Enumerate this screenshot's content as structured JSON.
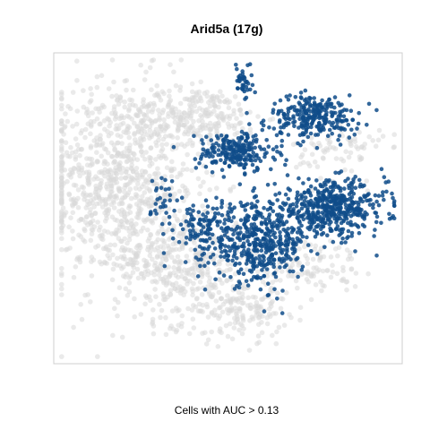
{
  "chart_data": {
    "type": "scatter",
    "title": "Arid5a (17g)",
    "xlabel": "Cells with AUC > 0.13",
    "ylabel": "",
    "axes": "hidden",
    "grid": false,
    "legend": "none",
    "colors": {
      "background_cells": "#d9d9d9",
      "selected_cells": "#0f4c8a",
      "frame": "#cfcfcf"
    },
    "density_regions": [
      {
        "role": "background",
        "center": [
          -14,
          4
        ],
        "spread": [
          7,
          10
        ],
        "count": 900
      },
      {
        "role": "background",
        "center": [
          -4,
          13
        ],
        "spread": [
          6,
          3
        ],
        "count": 260
      },
      {
        "role": "background",
        "center": [
          -6,
          -8
        ],
        "spread": [
          6,
          6
        ],
        "count": 420
      },
      {
        "role": "background",
        "center": [
          2,
          -14
        ],
        "spread": [
          4,
          3
        ],
        "count": 160
      },
      {
        "role": "background",
        "center": [
          10,
          -8
        ],
        "spread": [
          5,
          3
        ],
        "count": 120
      },
      {
        "role": "background",
        "center": [
          14,
          8
        ],
        "spread": [
          4,
          3
        ],
        "count": 80
      },
      {
        "role": "selected",
        "center": [
          11,
          13
        ],
        "spread": [
          4,
          2.2
        ],
        "count": 260
      },
      {
        "role": "selected",
        "center": [
          1,
          8
        ],
        "spread": [
          3.5,
          2
        ],
        "count": 230
      },
      {
        "role": "selected",
        "center": [
          13,
          0
        ],
        "spread": [
          5,
          2.8
        ],
        "count": 480
      },
      {
        "role": "selected",
        "center": [
          4,
          -5
        ],
        "spread": [
          4,
          4
        ],
        "count": 420
      },
      {
        "role": "selected",
        "center": [
          -3,
          -3
        ],
        "spread": [
          3,
          3
        ],
        "count": 120
      },
      {
        "role": "selected",
        "center": [
          2,
          18
        ],
        "spread": [
          0.8,
          2
        ],
        "count": 40
      },
      {
        "role": "selected",
        "center": [
          -8,
          1
        ],
        "spread": [
          1.2,
          3
        ],
        "count": 30
      }
    ],
    "xlim": [
      -22,
      22
    ],
    "ylim": [
      -22,
      22
    ]
  }
}
